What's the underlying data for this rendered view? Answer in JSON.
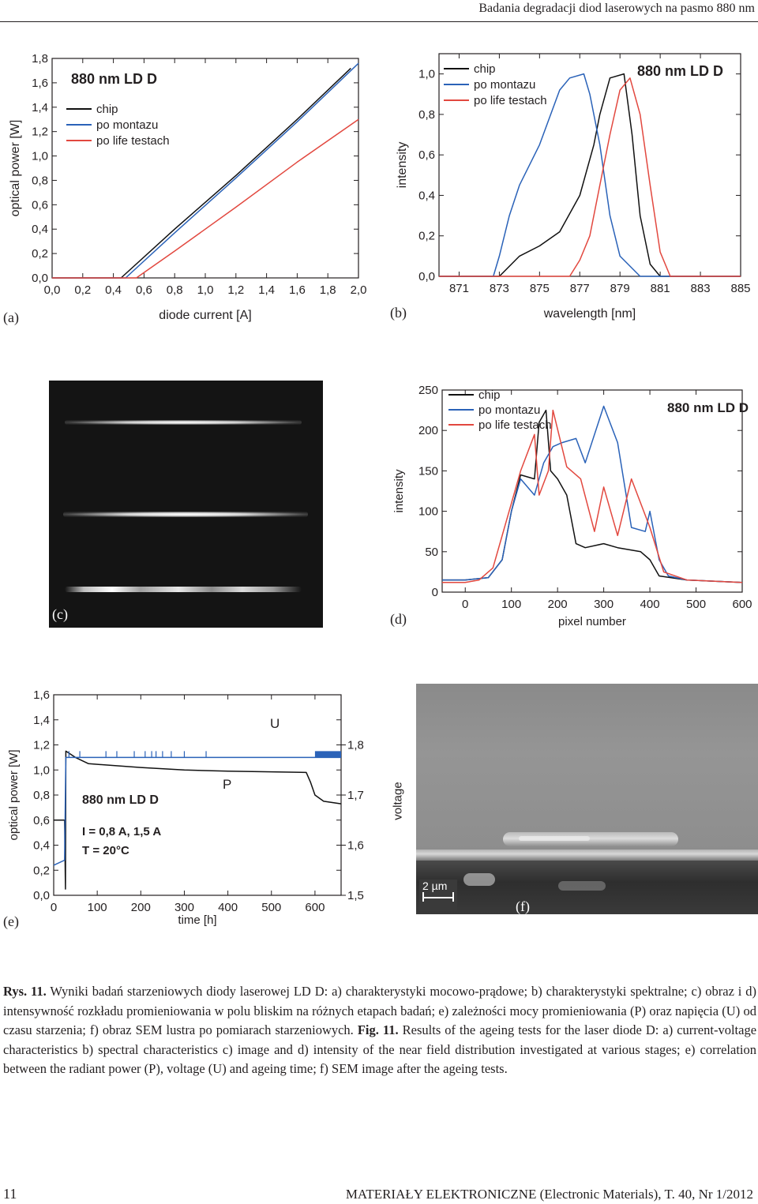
{
  "header": {
    "running_title": "Badania degradacji diod laserowych na pasmo 880 nm"
  },
  "colors": {
    "chip": "#111111",
    "po_montazu": "#2a62b8",
    "po_life_testach": "#e2483f",
    "axis": "#231f20"
  },
  "panels": {
    "a": {
      "label": "(a)"
    },
    "b": {
      "label": "(b)"
    },
    "c": {
      "label": "(c)"
    },
    "d": {
      "label": "(d)"
    },
    "e": {
      "label": "(e)",
      "annotation_U": "U",
      "annotation_P": "P"
    },
    "f": {
      "label": "(f)",
      "scale_bar": "2 µm",
      "side_label": "voltage"
    }
  },
  "chart_data": [
    {
      "id": "a",
      "type": "line",
      "title": "880 nm  LD D",
      "xlabel": "diode current  [A]",
      "ylabel": "optical power  [W]",
      "xlim": [
        0,
        2.0
      ],
      "ylim": [
        0,
        1.8
      ],
      "xticks": [
        "0,0",
        "0,2",
        "0,4",
        "0,6",
        "0,8",
        "1,0",
        "1,2",
        "1,4",
        "1,6",
        "1,8",
        "2,0"
      ],
      "yticks": [
        "0,0",
        "0,2",
        "0,4",
        "0,6",
        "0,8",
        "1,0",
        "1,2",
        "1,4",
        "1,6",
        "1,8"
      ],
      "legend": "top-left",
      "series": [
        {
          "name": "chip",
          "color": "#111111",
          "x": [
            0,
            0.45,
            0.8,
            1.2,
            1.6,
            1.95
          ],
          "y": [
            0,
            0,
            0.4,
            0.84,
            1.3,
            1.72
          ]
        },
        {
          "name": "po montazu",
          "color": "#2a62b8",
          "x": [
            0,
            0.48,
            0.8,
            1.2,
            1.6,
            2.0
          ],
          "y": [
            0,
            0,
            0.37,
            0.82,
            1.28,
            1.76
          ]
        },
        {
          "name": "po life testach",
          "color": "#e2483f",
          "x": [
            0,
            0.55,
            0.8,
            1.2,
            1.6,
            2.0
          ],
          "y": [
            0,
            0,
            0.22,
            0.58,
            0.95,
            1.3
          ]
        }
      ]
    },
    {
      "id": "b",
      "type": "line",
      "title": "880 nm  LD D",
      "xlabel": "wavelength  [nm]",
      "ylabel": "intensity",
      "xlim": [
        870,
        885
      ],
      "ylim": [
        0,
        1.1
      ],
      "xticks": [
        "871",
        "873",
        "875",
        "877",
        "879",
        "881",
        "883",
        "885"
      ],
      "xtick_values": [
        871,
        873,
        875,
        877,
        879,
        881,
        883,
        885
      ],
      "yticks": [
        "0,0",
        "0,2",
        "0,4",
        "0,6",
        "0,8",
        "1,0"
      ],
      "ytick_values": [
        0,
        0.2,
        0.4,
        0.6,
        0.8,
        1.0
      ],
      "legend": "top-left",
      "series": [
        {
          "name": "chip",
          "color": "#111111",
          "x": [
            870,
            873,
            874,
            875,
            876,
            877,
            877.7,
            878,
            878.5,
            879.2,
            879.6,
            880,
            880.5,
            881,
            885
          ],
          "y": [
            0,
            0,
            0.1,
            0.15,
            0.22,
            0.4,
            0.65,
            0.8,
            0.98,
            1.0,
            0.7,
            0.3,
            0.06,
            0,
            0
          ]
        },
        {
          "name": "po montazu",
          "color": "#2a62b8",
          "x": [
            870,
            872.7,
            873,
            873.5,
            874,
            875,
            876,
            876.5,
            877.2,
            877.5,
            878,
            878.5,
            879,
            880,
            885
          ],
          "y": [
            0,
            0,
            0.1,
            0.3,
            0.45,
            0.65,
            0.92,
            0.98,
            1.0,
            0.9,
            0.65,
            0.3,
            0.1,
            0,
            0
          ]
        },
        {
          "name": "po life testach",
          "color": "#e2483f",
          "x": [
            870,
            876.5,
            877,
            877.5,
            878,
            878.5,
            879,
            879.5,
            880,
            880.5,
            881,
            881.5,
            885
          ],
          "y": [
            0,
            0,
            0.08,
            0.2,
            0.45,
            0.7,
            0.92,
            0.98,
            0.8,
            0.45,
            0.12,
            0,
            0
          ]
        }
      ]
    },
    {
      "id": "d",
      "type": "line",
      "title": "880 nm  LD D",
      "xlabel": "pixel number",
      "ylabel": "intensity",
      "xlim": [
        -50,
        600
      ],
      "ylim": [
        0,
        250
      ],
      "xticks": [
        "0",
        "100",
        "200",
        "300",
        "400",
        "500",
        "600"
      ],
      "xtick_values": [
        0,
        100,
        200,
        300,
        400,
        500,
        600
      ],
      "yticks": [
        "0",
        "50",
        "100",
        "150",
        "200",
        "250"
      ],
      "ytick_values": [
        0,
        50,
        100,
        150,
        200,
        250
      ],
      "legend": "top-left",
      "series": [
        {
          "name": "chip",
          "color": "#111111",
          "x": [
            -50,
            0,
            50,
            80,
            100,
            120,
            150,
            160,
            175,
            185,
            200,
            220,
            240,
            260,
            300,
            330,
            380,
            400,
            420,
            480,
            600
          ],
          "y": [
            15,
            15,
            18,
            40,
            100,
            145,
            140,
            210,
            225,
            150,
            140,
            120,
            60,
            55,
            60,
            55,
            50,
            40,
            20,
            15,
            12
          ]
        },
        {
          "name": "po montazu",
          "color": "#2a62b8",
          "x": [
            -50,
            0,
            50,
            80,
            100,
            120,
            150,
            170,
            190,
            210,
            240,
            260,
            300,
            330,
            360,
            390,
            400,
            420,
            440,
            480,
            600
          ],
          "y": [
            15,
            15,
            18,
            40,
            100,
            140,
            120,
            160,
            180,
            185,
            190,
            160,
            230,
            185,
            80,
            75,
            100,
            40,
            20,
            15,
            12
          ]
        },
        {
          "name": "po life testach",
          "color": "#e2483f",
          "x": [
            -50,
            0,
            30,
            60,
            100,
            120,
            150,
            160,
            180,
            190,
            220,
            250,
            280,
            300,
            330,
            360,
            400,
            430,
            480,
            600
          ],
          "y": [
            12,
            12,
            15,
            30,
            110,
            150,
            195,
            120,
            150,
            225,
            155,
            140,
            75,
            130,
            70,
            140,
            80,
            25,
            15,
            12
          ]
        }
      ]
    },
    {
      "id": "e",
      "type": "line",
      "title": "880 nm   LD D",
      "conditions": [
        "I = 0,8 A, 1,5 A",
        "T = 20°C"
      ],
      "xlabel": "time [h]",
      "ylabel": "optical power [W]",
      "y2label": "voltage",
      "xlim": [
        0,
        660
      ],
      "ylim": [
        0,
        1.6
      ],
      "y2lim": [
        1.5,
        1.9
      ],
      "xticks": [
        "0",
        "100",
        "200",
        "300",
        "400",
        "500",
        "600"
      ],
      "xtick_values": [
        0,
        100,
        200,
        300,
        400,
        500,
        600
      ],
      "yticks": [
        "0,0",
        "0,2",
        "0,4",
        "0,6",
        "0,8",
        "1,0",
        "1,2",
        "1,4",
        "1,6"
      ],
      "ytick_values": [
        0,
        0.2,
        0.4,
        0.6,
        0.8,
        1.0,
        1.2,
        1.4,
        1.6
      ],
      "y2ticks": [
        "1,5",
        "1,6",
        "1,7",
        "1,8"
      ],
      "y2tick_values": [
        1.5,
        1.6,
        1.7,
        1.8
      ],
      "series": [
        {
          "name": "P",
          "color": "#111111",
          "x": [
            0,
            25,
            27,
            28,
            50,
            80,
            200,
            300,
            400,
            580,
            590,
            600,
            620,
            660
          ],
          "y": [
            0.6,
            0.6,
            0.05,
            1.15,
            1.1,
            1.05,
            1.02,
            1.0,
            0.99,
            0.98,
            0.9,
            0.8,
            0.75,
            0.73
          ]
        },
        {
          "name": "U",
          "color": "#2a62b8",
          "axis": "y2",
          "x": [
            0,
            25,
            28,
            660
          ],
          "y": [
            1.56,
            1.57,
            1.775,
            1.775
          ]
        }
      ]
    }
  ],
  "caption": {
    "rys_label": "Rys. 11.",
    "rys_text": "Wyniki badań starzeniowych diody laserowej LD D: a) charakterystyki mocowo-prądowe; b) charakterystyki spektralne; c) obraz i d) intensywność rozkładu promieniowania w polu bliskim na różnych etapach badań; e) zależności mocy promieniowania (P) oraz napięcia (U) od czasu starzenia; f) obraz SEM lustra po pomiarach starzeniowych.",
    "fig_label": "Fig. 11.",
    "fig_text": "Results of the ageing tests for the laser diode D: a) current-voltage characteristics b) spectral characteristics c) image and d) intensity of the near field distribution investigated at various stages; e) correlation between the radiant power (P), voltage (U) and ageing time; f) SEM image after the ageing tests."
  },
  "footer": {
    "page_number": "11",
    "journal": "MATERIAŁY ELEKTRONICZNE (Electronic Materials), T. 40, Nr 1/2012"
  }
}
